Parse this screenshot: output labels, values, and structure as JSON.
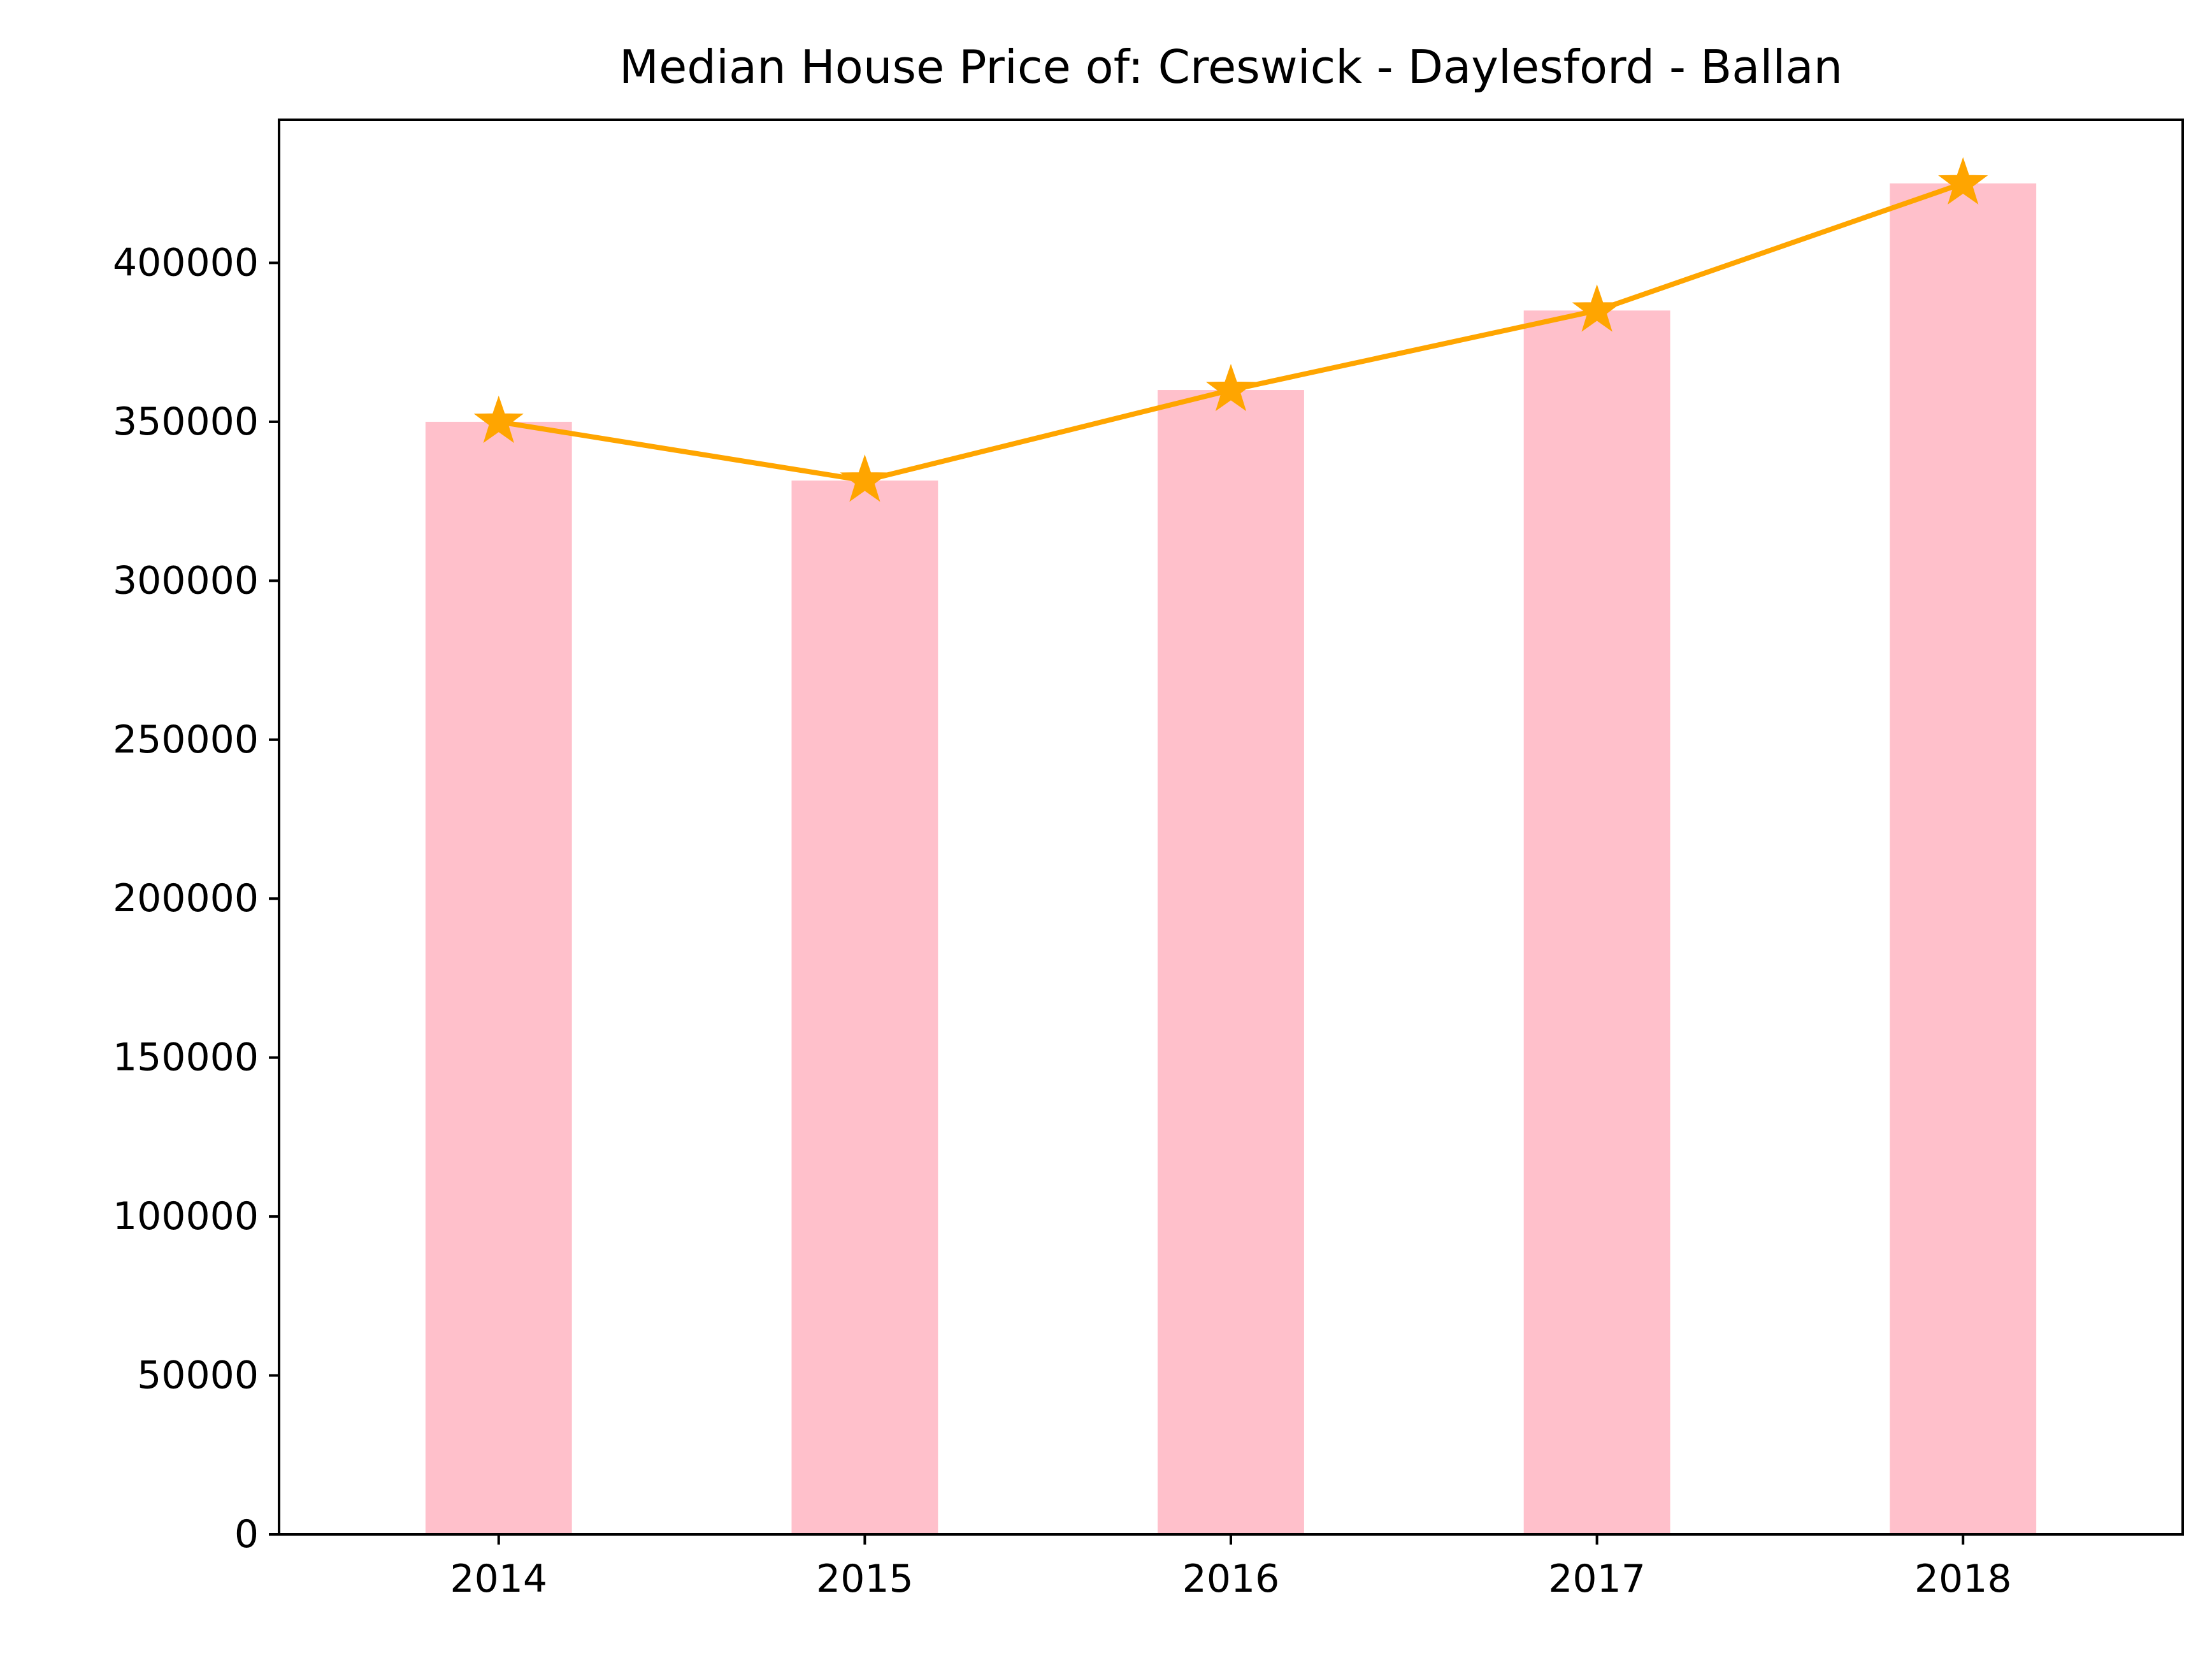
{
  "chart_data": {
    "type": "bar",
    "title": "Median House Price of: Creswick - Daylesford - Ballan",
    "xlabel": "",
    "ylabel": "",
    "categories": [
      "2014",
      "2015",
      "2016",
      "2017",
      "2018"
    ],
    "values": [
      350000,
      331500,
      360000,
      385000,
      425000
    ],
    "overlay_line": {
      "values": [
        350000,
        331500,
        360000,
        385000,
        425000
      ],
      "marker": "star",
      "color": "#ffa500"
    },
    "bar_color": "#ffc0cb",
    "ylim": [
      0,
      445000
    ],
    "yticks": [
      0,
      50000,
      100000,
      150000,
      200000,
      250000,
      300000,
      350000,
      400000
    ],
    "ytick_labels": [
      "0",
      "50000",
      "100000",
      "150000",
      "200000",
      "250000",
      "300000",
      "350000",
      "400000"
    ],
    "grid": false,
    "legend": "none"
  }
}
